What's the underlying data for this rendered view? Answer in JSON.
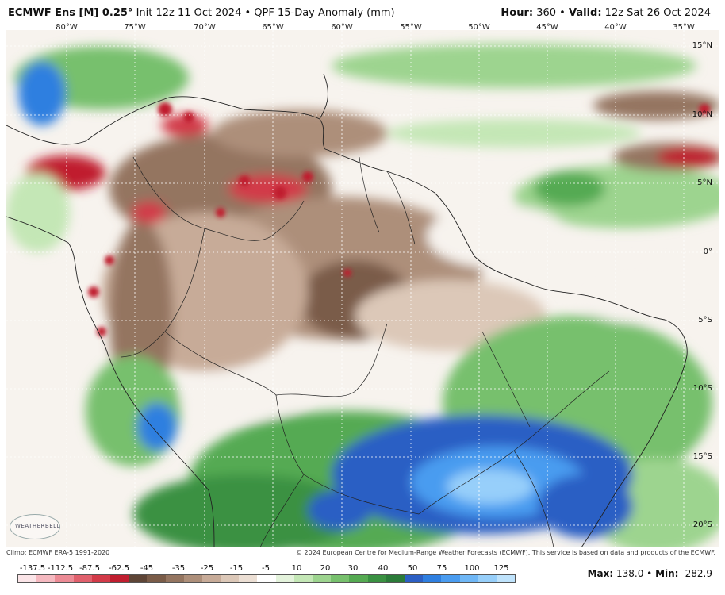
{
  "header": {
    "model": "ECMWF Ens [M] 0.25°",
    "init": "Init 12z 11 Oct 2024",
    "product": "QPF 15-Day Anomaly (mm)",
    "hour_label": "Hour:",
    "hour_value": "360",
    "valid_label": "Valid:",
    "valid_value": "12z Sat 26 Oct 2024"
  },
  "lon_labels": [
    "80°W",
    "75°W",
    "70°W",
    "65°W",
    "60°W",
    "55°W",
    "50°W",
    "45°W",
    "40°W",
    "35°W"
  ],
  "lat_labels": [
    "15°N",
    "10°N",
    "5°N",
    "0°",
    "5°S",
    "10°S",
    "15°S",
    "20°S"
  ],
  "logo_text": "WEATHERBELL",
  "footer": {
    "climo": "Climo: ECMWF ERA-5 1991-2020",
    "copyright": "© 2024 European Centre for Medium-Range Weather Forecasts (ECMWF). This service is based on data and products of the ECMWF."
  },
  "legend": {
    "ticks": [
      "-137.5",
      "-112.5",
      "-87.5",
      "-62.5",
      "-45",
      "-35",
      "-25",
      "-15",
      "-5",
      "10",
      "20",
      "30",
      "40",
      "50",
      "75",
      "100",
      "125"
    ],
    "colors": [
      "#fbe5e8",
      "#f5b9c0",
      "#ec8b95",
      "#e0606c",
      "#d23a48",
      "#c01e2f",
      "#5e4536",
      "#7a5c48",
      "#947560",
      "#ad8f7a",
      "#c7ab98",
      "#dcc8b8",
      "#ecdfd4",
      "#ffffff",
      "#e4f3dc",
      "#c4e7b6",
      "#9dd48f",
      "#77c06d",
      "#55aa52",
      "#3a9142",
      "#2b7b39",
      "#2c5fc4",
      "#2f7fe0",
      "#4a9cf0",
      "#6fb7f6",
      "#97cffa",
      "#bfe3fc"
    ]
  },
  "stats": {
    "max_label": "Max:",
    "max_value": "138.0",
    "min_label": "Min:",
    "min_value": "-282.9"
  }
}
